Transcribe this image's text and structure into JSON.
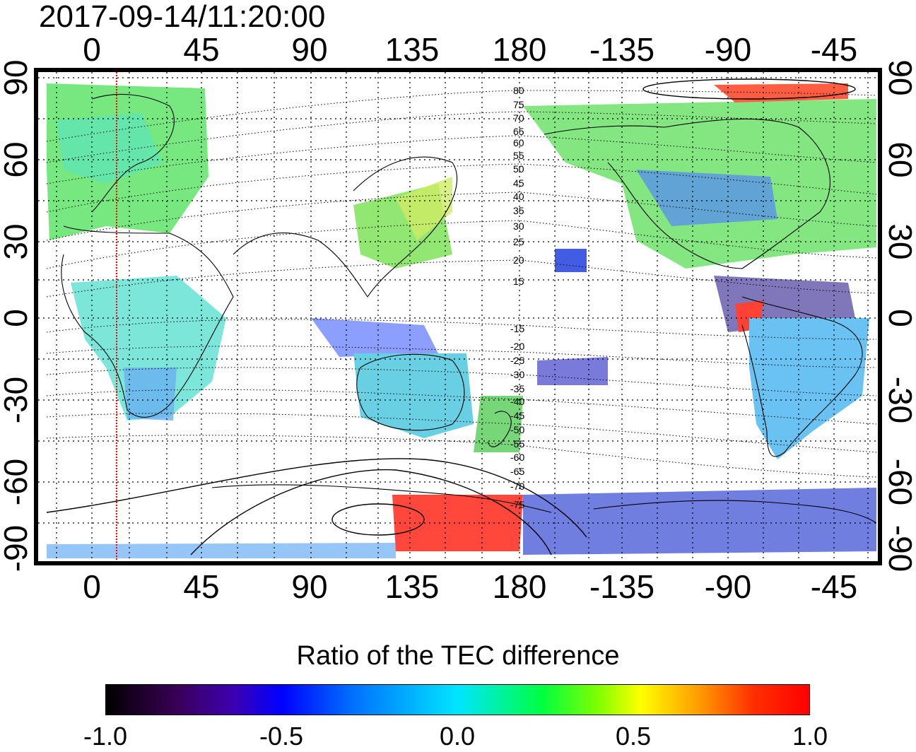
{
  "title": "2017-09-14/11:20:00",
  "x_ticks_top": [
    "0",
    "45",
    "90",
    "135",
    "180",
    "-135",
    "-90",
    "-45"
  ],
  "x_ticks_bottom": [
    "0",
    "45",
    "90",
    "135",
    "180",
    "-135",
    "-90",
    "-45"
  ],
  "y_ticks_left": [
    "90",
    "60",
    "30",
    "0",
    "-30",
    "-60",
    "-90"
  ],
  "y_ticks_right": [
    "90",
    "60",
    "30",
    "0",
    "-30",
    "-60",
    "-90"
  ],
  "contour_labels": [
    "80",
    "75",
    "70",
    "65",
    "60",
    "55",
    "50",
    "45",
    "40",
    "35",
    "30",
    "25",
    "20",
    "15",
    "-15",
    "-20",
    "-25",
    "-30",
    "-35",
    "-40",
    "-45",
    "-50",
    "-55",
    "-60",
    "-65",
    "-70",
    "-75"
  ],
  "colorbar": {
    "title": "Ratio of the TEC difference",
    "ticks": [
      "-1.0",
      "-0.5",
      "0.0",
      "0.5",
      "1.0"
    ],
    "range": [
      -1.0,
      1.0
    ]
  },
  "colors": {
    "terminator": "#ff0000",
    "positive": "#ff0000",
    "neutral": "#00e5a0",
    "negative": "#0000ff"
  }
}
